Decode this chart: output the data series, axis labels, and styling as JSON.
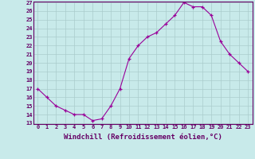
{
  "x": [
    0,
    1,
    2,
    3,
    4,
    5,
    6,
    7,
    8,
    9,
    10,
    11,
    12,
    13,
    14,
    15,
    16,
    17,
    18,
    19,
    20,
    21,
    22,
    23
  ],
  "y": [
    17,
    16,
    15,
    14.5,
    14,
    14,
    13.3,
    13.5,
    15,
    17,
    20.5,
    22,
    23,
    23.5,
    24.5,
    25.5,
    27,
    26.5,
    26.5,
    25.5,
    22.5,
    21,
    20,
    19
  ],
  "line_color": "#990099",
  "marker_color": "#990099",
  "bg_color": "#c8eaea",
  "grid_color": "#aacccc",
  "xlabel": "Windchill (Refroidissement éolien,°C)",
  "ylim": [
    13,
    27
  ],
  "xlim": [
    -0.5,
    23.5
  ],
  "yticks": [
    13,
    14,
    15,
    16,
    17,
    18,
    19,
    20,
    21,
    22,
    23,
    24,
    25,
    26,
    27
  ],
  "xticks": [
    0,
    1,
    2,
    3,
    4,
    5,
    6,
    7,
    8,
    9,
    10,
    11,
    12,
    13,
    14,
    15,
    16,
    17,
    18,
    19,
    20,
    21,
    22,
    23
  ],
  "tick_fontsize": 5,
  "xlabel_fontsize": 6.5,
  "axis_color": "#660066",
  "border_color": "#660066"
}
